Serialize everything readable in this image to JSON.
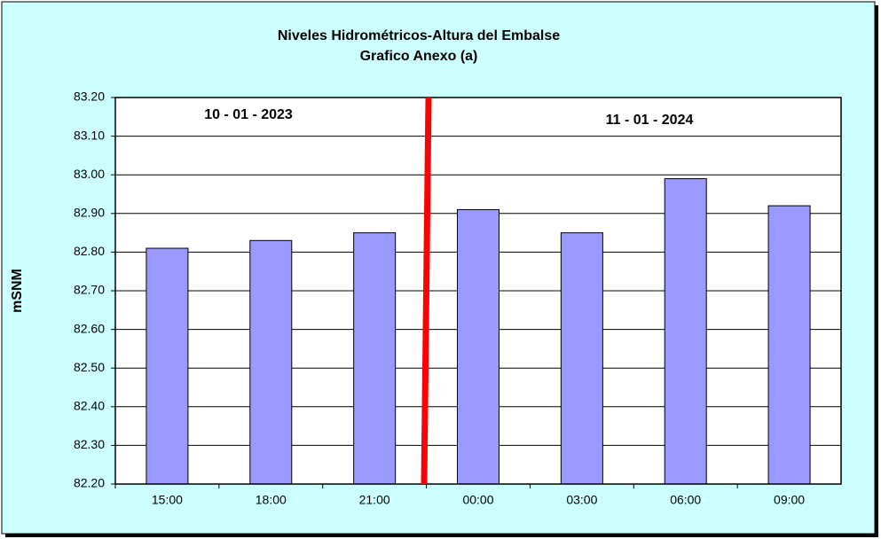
{
  "chart_data": {
    "type": "bar",
    "title": "Niveles Hidrométricos-Altura del Embalse",
    "subtitle": "Grafico Anexo (a)",
    "y_label": "mSNM",
    "annotations": [
      "10 - 01 - 2023",
      "11 - 01 - 2024"
    ],
    "categories": [
      "15:00",
      "18:00",
      "21:00",
      "00:00",
      "03:00",
      "06:00",
      "09:00"
    ],
    "values": [
      82.81,
      82.83,
      82.85,
      82.91,
      82.85,
      82.99,
      82.92
    ],
    "color": "#9999ff",
    "ylim": [
      82.2,
      83.2
    ],
    "yticks": [
      {
        "value": 82.2,
        "label": "82.20"
      },
      {
        "value": 82.3,
        "label": "82.30"
      },
      {
        "value": 82.4,
        "label": "82.40"
      },
      {
        "value": 82.5,
        "label": "82.50"
      },
      {
        "value": 82.6,
        "label": "82.60"
      },
      {
        "value": 82.7,
        "label": "82.70"
      },
      {
        "value": 82.8,
        "label": "82.80"
      },
      {
        "value": 82.9,
        "label": "82.90"
      },
      {
        "value": 83.0,
        "label": "83.00"
      },
      {
        "value": 83.1,
        "label": "83.10"
      },
      {
        "value": 83.2,
        "label": "83.20"
      }
    ],
    "grid": true
  }
}
